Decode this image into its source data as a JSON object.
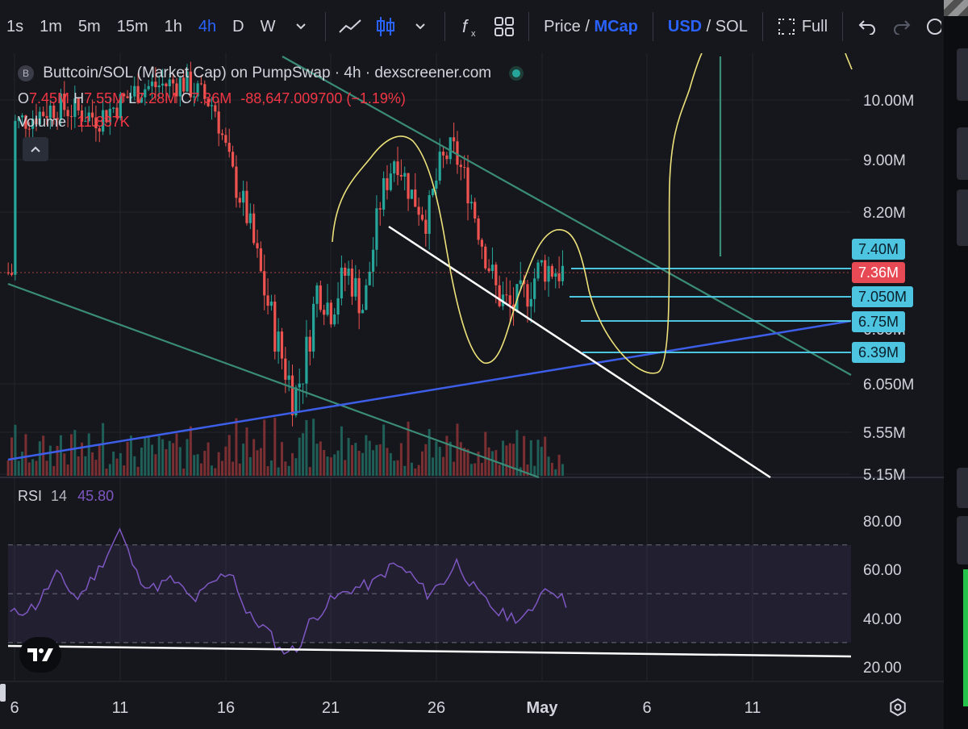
{
  "toolbar": {
    "intervals": [
      "1s",
      "1m",
      "5m",
      "15m",
      "1h",
      "4h",
      "D",
      "W"
    ],
    "active_interval": "4h",
    "price_label": "Price",
    "mcap_label": "MCap",
    "usd_label": "USD",
    "sol_label": "SOL",
    "slash": "/",
    "full_label": "Full",
    "icons": [
      "chevron-down-icon",
      "line-chart-icon",
      "candles-icon",
      "chevron-down-icon",
      "indicators-icon",
      "layout-icon",
      "fullscreen-icon",
      "undo-icon",
      "redo-icon"
    ]
  },
  "legend": {
    "logo": "B",
    "title": "Buttcoin/SOL (Market Cap) on PumpSwap · 4h · dexscreener.com",
    "o_label": "O",
    "o_value": "7.45M",
    "h_label": "H",
    "h_value": "7.55M",
    "l_label": "L",
    "l_value": "7.28M",
    "c_label": "C",
    "c_value": "7.36M",
    "change": "-88,647.009700 (−1.19%)",
    "volume_label": "Volume",
    "volume_value": "11.837K"
  },
  "rsi": {
    "label": "RSI",
    "period": "14",
    "value": "45.80"
  },
  "colors": {
    "up": "#26a69a",
    "down": "#ef5350",
    "accent": "#2962ff",
    "rsi": "#7e57c2",
    "level_box": "#4dc4e0",
    "current_box": "#e84a55"
  },
  "chart_data": {
    "type": "candlestick",
    "x_ticks": [
      "6",
      "11",
      "16",
      "21",
      "26",
      "May",
      "6",
      "11"
    ],
    "price_axis": [
      "10.00M",
      "9.00M",
      "8.20M",
      "6.050M",
      "5.55M",
      "5.15M"
    ],
    "price_axis_hidden": "6.60M",
    "level_labels": [
      {
        "label": "7.40M",
        "kind": "level"
      },
      {
        "label": "7.36M",
        "kind": "current"
      },
      {
        "label": "7.050M",
        "kind": "level"
      },
      {
        "label": "6.75M",
        "kind": "level"
      },
      {
        "label": "6.39M",
        "kind": "level"
      }
    ],
    "rsi_axis": [
      "80.00",
      "60.00",
      "40.00",
      "20.00"
    ],
    "rsi_band": [
      30,
      70
    ],
    "rsi_midline": 50,
    "candles_approx_mcap_millions": {
      "segments": [
        {
          "date": "Apr 6",
          "range": [
            9.3,
            10.5
          ]
        },
        {
          "date": "Apr 16",
          "range": [
            8.8,
            10.5
          ]
        },
        {
          "date": "Apr 19",
          "range": [
            5.8,
            6.4
          ]
        },
        {
          "date": "Apr 24",
          "range": [
            8.3,
            9.3
          ]
        },
        {
          "date": "Apr 26",
          "range": [
            8.9,
            9.6
          ]
        },
        {
          "date": "Apr 30",
          "range": [
            6.6,
            7.2
          ]
        },
        {
          "date": "May 2",
          "range": [
            7.28,
            7.55
          ]
        }
      ]
    }
  }
}
